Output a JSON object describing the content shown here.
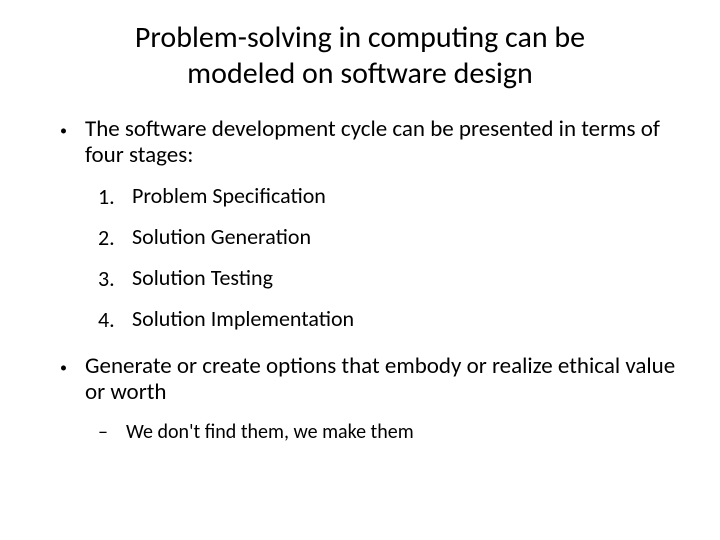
{
  "title": "Problem-solving in computing can be modeled on software design",
  "bullet1": {
    "text": "The software development cycle can be presented in terms of four stages:"
  },
  "stages": [
    {
      "num": "1.",
      "text": "Problem Specification"
    },
    {
      "num": "2.",
      "text": "Solution Generation"
    },
    {
      "num": "3.",
      "text": "Solution Testing"
    },
    {
      "num": "4.",
      "text": "Solution Implementation"
    }
  ],
  "bullet2": {
    "text": "Generate or create options that embody or realize ethical value or worth"
  },
  "sub_bullet": {
    "text": "We don't find them, we make them"
  },
  "style": {
    "background_color": "#ffffff",
    "text_color": "#000000",
    "title_fontsize": 30,
    "body_fontsize": 23,
    "numbered_fontsize": 22,
    "sub_fontsize": 20,
    "font_family": "Calibri"
  }
}
